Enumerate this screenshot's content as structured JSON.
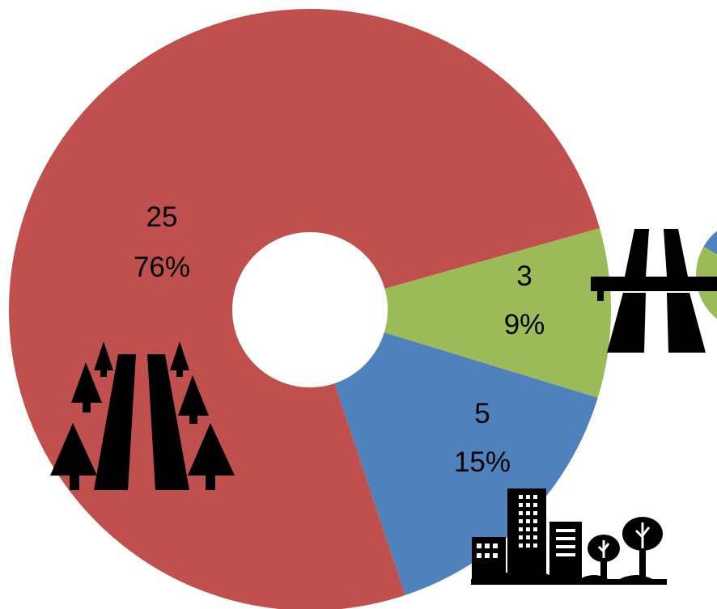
{
  "chart_data": {
    "type": "pie",
    "variant": "doughnut",
    "slices": [
      {
        "value": 5,
        "percent": "15%",
        "color": "#4F81BD",
        "icon": "city-buildings-trees-icon"
      },
      {
        "value": 25,
        "percent": "76%",
        "color": "#C0504D",
        "icon": "forest-road-icon"
      },
      {
        "value": 3,
        "percent": "9%",
        "color": "#9BBB59",
        "icon": "highway-overpass-icon"
      }
    ],
    "secondary_chart": {
      "note": "partially visible second doughnut cut off at right edge",
      "colors": [
        "#4F81BD",
        "#9BBB59",
        "#C0504D"
      ]
    }
  }
}
